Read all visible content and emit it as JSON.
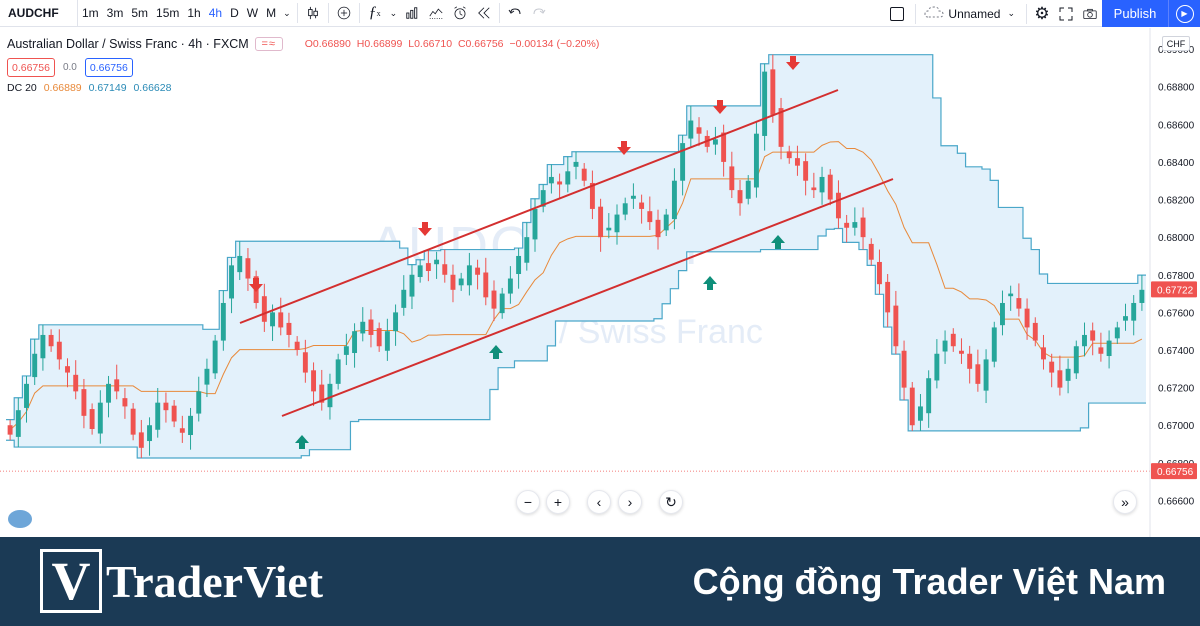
{
  "toolbar": {
    "symbol": "AUDCHF",
    "intervals": [
      "1m",
      "3m",
      "5m",
      "15m",
      "1h",
      "4h",
      "D",
      "W",
      "M"
    ],
    "active_interval": "4h",
    "layout_name": "Unnamed",
    "publish_label": "Publish"
  },
  "legend": {
    "title": "Australian Dollar / Swiss Franc · 4h · FXCM",
    "open": "O0.66890",
    "high": "H0.66899",
    "low": "L0.66710",
    "close": "C0.66756",
    "change": "−0.00134 (−0.20%)",
    "bid": "0.66756",
    "spread": "0.0",
    "ask": "0.66756",
    "indicator_name": "DC 20",
    "dc_mid": "0.66889",
    "dc_upper": "0.67149",
    "dc_lower": "0.66628"
  },
  "watermark": {
    "symbol": "AUDCHF, 4h",
    "name": "Australian Dollar / Swiss Franc"
  },
  "axis": {
    "currency": "CHF",
    "ticks": [
      "0.69000",
      "0.68800",
      "0.68600",
      "0.68400",
      "0.68200",
      "0.68000",
      "0.67800",
      "0.67600",
      "0.67400",
      "0.67200",
      "0.67000",
      "0.66800",
      "0.66600"
    ],
    "last_price_label": "0.67722",
    "bid_price_label": "0.66756"
  },
  "colors": {
    "bull": "#26a69a",
    "bear": "#ef5350",
    "channel_line": "#d32f2f",
    "dc_band": "#4aa7c9",
    "dc_mid": "#e8893a",
    "down_arrow": "#e53935",
    "up_arrow": "#0f8f7a",
    "footer_bg": "#1b3a55"
  },
  "chart_data": {
    "type": "candlestick",
    "ylim": [
      0.6656,
      0.6908
    ],
    "series": [
      {
        "values": [
          0.6695,
          0.6708,
          0.6722,
          0.6738,
          0.6748,
          0.6742,
          0.6735,
          0.6728,
          0.6718,
          0.6705,
          0.6698,
          0.6712,
          0.6722,
          0.6718,
          0.671,
          0.6695,
          0.6688,
          0.67,
          0.6712,
          0.6708,
          0.6702,
          0.6696,
          0.6705,
          0.6718,
          0.673,
          0.6745,
          0.6765,
          0.6785,
          0.679,
          0.6778,
          0.6765,
          0.6755,
          0.676,
          0.6752,
          0.6748,
          0.674,
          0.6728,
          0.6718,
          0.6712,
          0.6722,
          0.6735,
          0.6742,
          0.675,
          0.6755,
          0.6748,
          0.6742,
          0.675,
          0.676,
          0.6772,
          0.678,
          0.6785,
          0.6782,
          0.6788,
          0.678,
          0.6772,
          0.6778,
          0.6785,
          0.678,
          0.6768,
          0.6762,
          0.677,
          0.6778,
          0.679,
          0.68,
          0.6815,
          0.6825,
          0.6832,
          0.6828,
          0.6835,
          0.684,
          0.683,
          0.6815,
          0.68,
          0.6805,
          0.6812,
          0.6818,
          0.6822,
          0.6815,
          0.6808,
          0.68,
          0.6812,
          0.683,
          0.685,
          0.6862,
          0.6855,
          0.6848,
          0.6852,
          0.684,
          0.6825,
          0.6818,
          0.683,
          0.6855,
          0.6888,
          0.6865,
          0.6848,
          0.6842,
          0.6838,
          0.683,
          0.6825,
          0.6832,
          0.682,
          0.681,
          0.6805,
          0.6808,
          0.68,
          0.6788,
          0.6775,
          0.676,
          0.6742,
          0.672,
          0.67,
          0.671,
          0.6725,
          0.6738,
          0.6745,
          0.6742,
          0.6738,
          0.673,
          0.6722,
          0.6735,
          0.6752,
          0.6765,
          0.677,
          0.6762,
          0.6752,
          0.6745,
          0.6735,
          0.6728,
          0.672,
          0.673,
          0.6742,
          0.6748,
          0.6745,
          0.6738,
          0.6745,
          0.6752,
          0.6758,
          0.6765,
          0.6772
        ]
      }
    ]
  },
  "footer": {
    "brand_mark": "V",
    "brand_name": "TraderViet",
    "tagline": "Cộng đồng Trader Việt Nam"
  }
}
